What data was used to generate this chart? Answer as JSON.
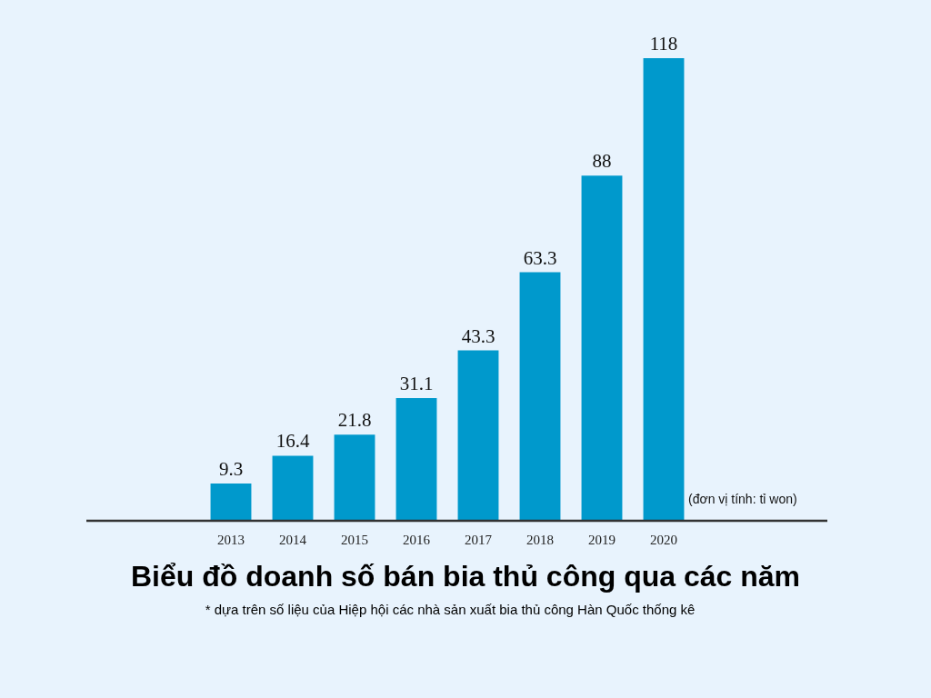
{
  "chart_data": {
    "type": "bar",
    "title": "Biểu đồ doanh số bán bia thủ công qua các năm",
    "subtitle": "* dựa trên số liệu của Hiệp hội các nhà sản xuất bia thủ công Hàn Quốc thống kê",
    "annotations": [
      "(đơn vị tính: tỉ won)"
    ],
    "categories": [
      "2013",
      "2014",
      "2015",
      "2016",
      "2017",
      "2018",
      "2019",
      "2020"
    ],
    "values": [
      9.3,
      16.4,
      21.8,
      31.1,
      43.3,
      63.3,
      88,
      118
    ],
    "color": "#0099cc",
    "data_labels": true,
    "grid": false,
    "legend": false
  }
}
